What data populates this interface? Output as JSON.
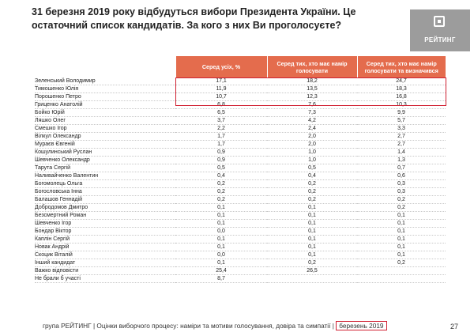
{
  "title": "31 березня 2019 року відбудуться вибори Президента України. Це остаточний список кандидатів. За кого з них Ви проголосуєте?",
  "logo": {
    "text": "РЕЙТИНГ",
    "icon": "rating-logo-icon"
  },
  "colors": {
    "header_bg": "#e46c4d",
    "highlight": "#d02032"
  },
  "chart_data": {
    "type": "table",
    "columns": [
      "Серед усіх, %",
      "Серед тих, хто має намір голосувати",
      "Серед тих, хто має намір голосувати та визначився"
    ],
    "rows": [
      {
        "name": "Зеленський Володимир",
        "values": [
          "17,1",
          "18,2",
          "24,7"
        ]
      },
      {
        "name": "Тимошенко Юлія",
        "values": [
          "11,9",
          "13,5",
          "18,3"
        ]
      },
      {
        "name": "Порошенко Петро",
        "values": [
          "10,7",
          "12,3",
          "16,8"
        ]
      },
      {
        "name": "Гриценко Анатолій",
        "values": [
          "6,8",
          "7,6",
          "10,3"
        ]
      },
      {
        "name": "Бойко Юрій",
        "values": [
          "6,5",
          "7,3",
          "9,9"
        ]
      },
      {
        "name": "Ляшко Олег",
        "values": [
          "3,7",
          "4,2",
          "5,7"
        ]
      },
      {
        "name": "Смешко Ігор",
        "values": [
          "2,2",
          "2,4",
          "3,3"
        ]
      },
      {
        "name": "Вілкул Олександр",
        "values": [
          "1,7",
          "2,0",
          "2,7"
        ]
      },
      {
        "name": "Мураєв Євгеній",
        "values": [
          "1,7",
          "2,0",
          "2,7"
        ]
      },
      {
        "name": "Кошулинський Руслан",
        "values": [
          "0,9",
          "1,0",
          "1,4"
        ]
      },
      {
        "name": "Шевченко Олександр",
        "values": [
          "0,9",
          "1,0",
          "1,3"
        ]
      },
      {
        "name": "Тарута Сергій",
        "values": [
          "0,5",
          "0,5",
          "0,7"
        ]
      },
      {
        "name": "Наливайченко Валентин",
        "values": [
          "0,4",
          "0,4",
          "0,6"
        ]
      },
      {
        "name": "Богомолець Ольга",
        "values": [
          "0,2",
          "0,2",
          "0,3"
        ]
      },
      {
        "name": "Богословська Інна",
        "values": [
          "0,2",
          "0,2",
          "0,3"
        ]
      },
      {
        "name": "Балашов Геннадій",
        "values": [
          "0,2",
          "0,2",
          "0,2"
        ]
      },
      {
        "name": "Добродомов Дмитро",
        "values": [
          "0,1",
          "0,1",
          "0,2"
        ]
      },
      {
        "name": "Безсмертний Роман",
        "values": [
          "0,1",
          "0,1",
          "0,1"
        ]
      },
      {
        "name": "Шевченко Ігор",
        "values": [
          "0,1",
          "0,1",
          "0,1"
        ]
      },
      {
        "name": "Бондар Віктор",
        "values": [
          "0,0",
          "0,1",
          "0,1"
        ]
      },
      {
        "name": "Каплін Сергій",
        "values": [
          "0,1",
          "0,1",
          "0,1"
        ]
      },
      {
        "name": "Новак Андрій",
        "values": [
          "0,1",
          "0,1",
          "0,1"
        ]
      },
      {
        "name": "Скоцик Віталій",
        "values": [
          "0,0",
          "0,1",
          "0,1"
        ]
      },
      {
        "name": "Інший кандидат",
        "values": [
          "0,1",
          "0,2",
          "0,2"
        ]
      },
      {
        "name": "Важко відповісти",
        "values": [
          "25,4",
          "26,5",
          ""
        ]
      },
      {
        "name": "Не брали б участі",
        "values": [
          "8,7",
          "",
          ""
        ]
      }
    ],
    "highlighted_rows": [
      "Зеленський Володимир",
      "Тимошенко Юлія",
      "Порошенко Петро"
    ]
  },
  "footer": {
    "text": "група РЕЙТИНГ | Оцінки виборчого процесу: наміри та мотиви голосування, довіра та симпатії |",
    "date": "березень 2019",
    "page": "27"
  }
}
